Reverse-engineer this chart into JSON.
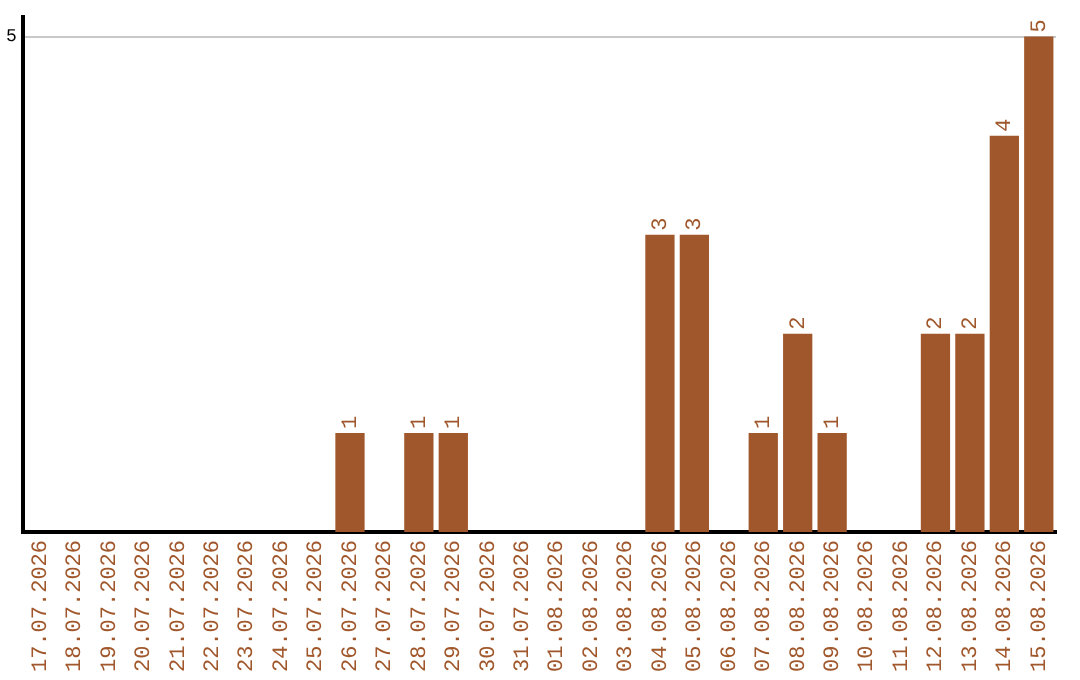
{
  "chart_data": {
    "type": "bar",
    "categories": [
      "17.07.2026",
      "18.07.2026",
      "19.07.2026",
      "20.07.2026",
      "21.07.2026",
      "22.07.2026",
      "23.07.2026",
      "24.07.2026",
      "25.07.2026",
      "26.07.2026",
      "27.07.2026",
      "28.07.2026",
      "29.07.2026",
      "30.07.2026",
      "31.07.2026",
      "01.08.2026",
      "02.08.2026",
      "03.08.2026",
      "04.08.2026",
      "05.08.2026",
      "06.08.2026",
      "07.08.2026",
      "08.08.2026",
      "09.08.2026",
      "10.08.2026",
      "11.08.2026",
      "12.08.2026",
      "13.08.2026",
      "14.08.2026",
      "15.08.2026"
    ],
    "values": [
      0,
      0,
      0,
      0,
      0,
      0,
      0,
      0,
      0,
      1,
      0,
      1,
      1,
      0,
      0,
      0,
      0,
      0,
      3,
      3,
      0,
      1,
      2,
      1,
      0,
      0,
      2,
      2,
      4,
      5
    ],
    "value_labels": [
      null,
      null,
      null,
      null,
      null,
      null,
      null,
      null,
      null,
      "1",
      null,
      "1",
      "1",
      null,
      null,
      null,
      null,
      null,
      "3",
      "3",
      null,
      "1",
      "2",
      "1",
      null,
      null,
      "2",
      "2",
      "4",
      "5"
    ],
    "color": "#a0572b",
    "ylim": [
      0,
      5.2
    ],
    "yticks": [
      5
    ],
    "grid": "y"
  }
}
